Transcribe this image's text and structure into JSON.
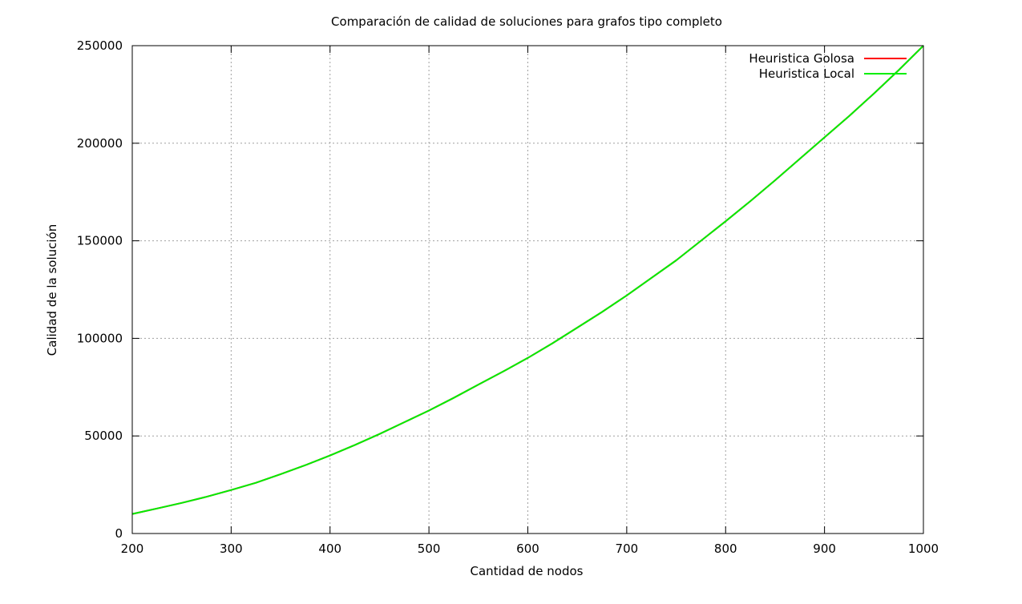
{
  "chart_data": {
    "type": "line",
    "title": "Comparación de calidad de soluciones para grafos tipo completo",
    "xlabel": "Cantidad de nodos",
    "ylabel": "Calidad de la solución",
    "xlim": [
      200,
      1000
    ],
    "ylim": [
      0,
      250000
    ],
    "x_ticks": [
      200,
      300,
      400,
      500,
      600,
      700,
      800,
      900,
      1000
    ],
    "y_ticks": [
      0,
      50000,
      100000,
      150000,
      200000,
      250000
    ],
    "grid": true,
    "legend_position": "top-right",
    "x": [
      200,
      225,
      250,
      275,
      300,
      325,
      350,
      375,
      400,
      425,
      450,
      475,
      500,
      525,
      550,
      575,
      600,
      625,
      650,
      675,
      700,
      725,
      750,
      775,
      800,
      825,
      850,
      875,
      900,
      925,
      950,
      975,
      1000
    ],
    "series": [
      {
        "name": "Heuristica Golosa",
        "color": "#ff0000",
        "values": [
          10000,
          12800,
          15700,
          18800,
          22300,
          26000,
          30400,
          35000,
          40000,
          45300,
          51000,
          57000,
          63000,
          69500,
          76300,
          83000,
          90000,
          97500,
          105500,
          113500,
          122000,
          131000,
          140000,
          150000,
          160000,
          170300,
          181000,
          192000,
          203000,
          214000,
          225500,
          237500,
          250000
        ]
      },
      {
        "name": "Heuristica Local",
        "color": "#00ee00",
        "values": [
          10000,
          12800,
          15700,
          18800,
          22300,
          26000,
          30400,
          35000,
          40000,
          45300,
          51000,
          57000,
          63000,
          69500,
          76300,
          83000,
          90000,
          97500,
          105500,
          113500,
          122000,
          131000,
          140000,
          150000,
          160000,
          170300,
          181000,
          192000,
          203000,
          214000,
          225500,
          237500,
          250000
        ]
      }
    ]
  }
}
